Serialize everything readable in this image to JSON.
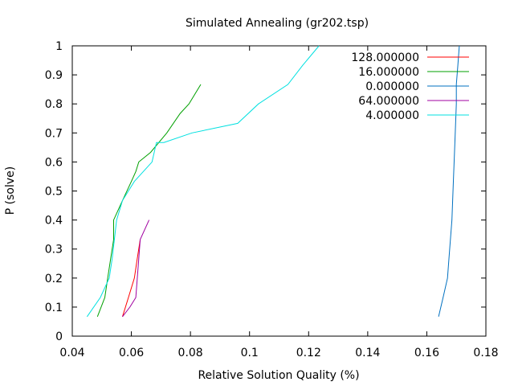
{
  "chart_data": {
    "type": "line",
    "title": "Simulated Annealing (gr202.tsp)",
    "xlabel": "Relative Solution Quality (%)",
    "ylabel": "P (solve)",
    "xlim": [
      0.04,
      0.18
    ],
    "ylim": [
      0,
      1
    ],
    "x_ticks": [
      0.04,
      0.06,
      0.08,
      0.1,
      0.12,
      0.14,
      0.16,
      0.18
    ],
    "y_ticks": [
      0,
      0.1,
      0.2,
      0.3,
      0.4,
      0.5,
      0.6,
      0.7,
      0.8,
      0.9,
      1
    ],
    "x_tick_labels": [
      "0.04",
      "0.06",
      "0.08",
      "0.1",
      "0.12",
      "0.14",
      "0.16",
      "0.18"
    ],
    "y_tick_labels": [
      "0",
      "0.1",
      "0.2",
      "0.3",
      "0.4",
      "0.5",
      "0.6",
      "0.7",
      "0.8",
      "0.9",
      "1"
    ],
    "grid": false,
    "legend_position": "top-right",
    "series": [
      {
        "name": "128.000000",
        "color": "#ff0000",
        "points": [
          [
            0.057,
            0.067
          ],
          [
            0.059,
            0.133
          ],
          [
            0.061,
            0.2
          ],
          [
            0.062,
            0.267
          ],
          [
            0.063,
            0.333
          ]
        ]
      },
      {
        "name": "16.000000",
        "color": "#00a000",
        "points": [
          [
            0.0485,
            0.067
          ],
          [
            0.051,
            0.133
          ],
          [
            0.052,
            0.2
          ],
          [
            0.053,
            0.267
          ],
          [
            0.054,
            0.333
          ],
          [
            0.054,
            0.4
          ],
          [
            0.057,
            0.467
          ],
          [
            0.06,
            0.533
          ],
          [
            0.0615,
            0.567
          ],
          [
            0.0625,
            0.6
          ],
          [
            0.0665,
            0.633
          ],
          [
            0.072,
            0.7
          ],
          [
            0.0765,
            0.767
          ],
          [
            0.0795,
            0.8
          ],
          [
            0.0835,
            0.867
          ]
        ]
      },
      {
        "name": "0.000000",
        "color": "#0070c0",
        "points": [
          [
            0.164,
            0.067
          ],
          [
            0.1655,
            0.133
          ],
          [
            0.167,
            0.2
          ],
          [
            0.1675,
            0.267
          ],
          [
            0.1685,
            0.4
          ],
          [
            0.169,
            0.533
          ],
          [
            0.1695,
            0.667
          ],
          [
            0.17,
            0.8
          ],
          [
            0.17,
            0.867
          ],
          [
            0.1705,
            0.933
          ],
          [
            0.171,
            1.0
          ]
        ]
      },
      {
        "name": "64.000000",
        "color": "#a000a0",
        "points": [
          [
            0.057,
            0.067
          ],
          [
            0.0595,
            0.1
          ],
          [
            0.0615,
            0.133
          ],
          [
            0.0625,
            0.267
          ],
          [
            0.063,
            0.333
          ],
          [
            0.066,
            0.4
          ]
        ]
      },
      {
        "name": "4.000000",
        "color": "#00e0e0",
        "points": [
          [
            0.045,
            0.067
          ],
          [
            0.0495,
            0.133
          ],
          [
            0.0525,
            0.2
          ],
          [
            0.0535,
            0.267
          ],
          [
            0.055,
            0.4
          ],
          [
            0.057,
            0.467
          ],
          [
            0.061,
            0.533
          ],
          [
            0.067,
            0.6
          ],
          [
            0.0685,
            0.667
          ],
          [
            0.071,
            0.667
          ],
          [
            0.0805,
            0.7
          ],
          [
            0.096,
            0.733
          ],
          [
            0.103,
            0.8
          ],
          [
            0.113,
            0.867
          ],
          [
            0.118,
            0.933
          ],
          [
            0.1235,
            1.0
          ]
        ]
      }
    ]
  }
}
